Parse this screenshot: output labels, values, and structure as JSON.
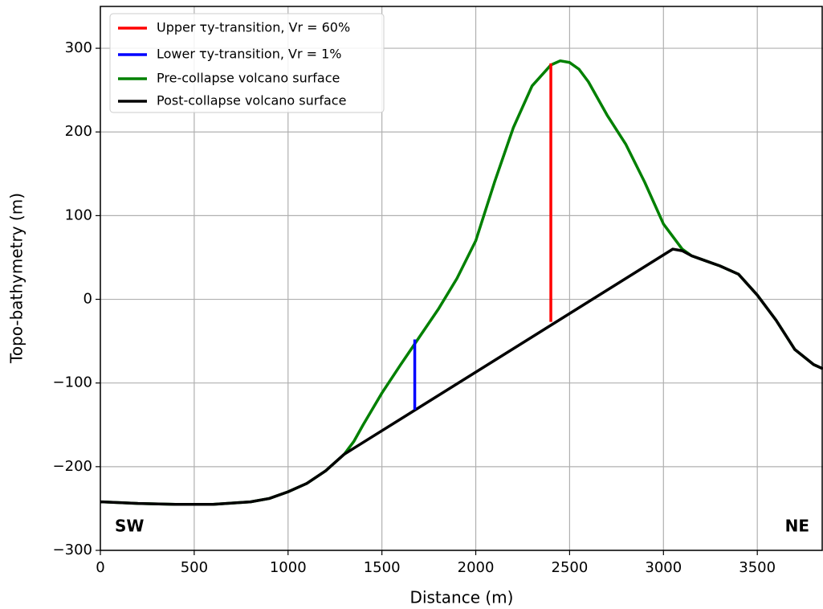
{
  "chart_data": {
    "type": "line",
    "x_label": "Distance (m)",
    "y_label": "Topo-bathymetry (m)",
    "annotations": [
      "SW",
      "NE"
    ],
    "xlim": [
      0,
      3850
    ],
    "ylim": [
      -300,
      350
    ],
    "xticks": [
      0,
      500,
      1000,
      1500,
      2000,
      2500,
      3000,
      3500
    ],
    "yticks": [
      {
        "value": -300,
        "label": "−300"
      },
      {
        "value": -200,
        "label": "−200"
      },
      {
        "value": -100,
        "label": "−100"
      },
      0,
      100,
      200,
      300
    ],
    "grid": true,
    "legend": "upper left",
    "series": [
      {
        "name": "Upper τy-transition, Vr = 60%",
        "color": "#ff0000",
        "x": [
          2400,
          2400
        ],
        "values": [
          -27,
          282
        ]
      },
      {
        "name": "Lower τy-transition, Vr = 1%",
        "color": "#0000ff",
        "x": [
          1675,
          1675
        ],
        "values": [
          -132,
          -48
        ]
      },
      {
        "name": "Pre-collapse volcano surface",
        "color": "#008000",
        "x": [
          0,
          200,
          400,
          600,
          800,
          900,
          1000,
          1100,
          1200,
          1300,
          1350,
          1400,
          1500,
          1600,
          1700,
          1800,
          1900,
          2000,
          2100,
          2200,
          2300,
          2400,
          2450,
          2500,
          2550,
          2600,
          2700,
          2800,
          2900,
          3000,
          3100,
          3150,
          3200,
          3300,
          3400,
          3500,
          3600,
          3700,
          3800,
          3850
        ],
        "values": [
          -242,
          -244,
          -245,
          -245,
          -242,
          -238,
          -230,
          -220,
          -205,
          -185,
          -170,
          -150,
          -112,
          -78,
          -45,
          -12,
          25,
          70,
          140,
          205,
          255,
          280,
          285,
          283,
          275,
          260,
          220,
          185,
          140,
          90,
          60,
          52,
          48,
          40,
          30,
          5,
          -25,
          -60,
          -78,
          -83
        ]
      },
      {
        "name": "Post-collapse volcano surface",
        "color": "#000000",
        "x": [
          0,
          200,
          400,
          600,
          800,
          900,
          1000,
          1100,
          1200,
          1300,
          1350,
          3050,
          3100,
          3150,
          3200,
          3300,
          3400,
          3500,
          3600,
          3700,
          3800,
          3850
        ],
        "values": [
          -242,
          -244,
          -245,
          -245,
          -242,
          -238,
          -230,
          -220,
          -205,
          -185,
          -178,
          60,
          58,
          52,
          48,
          40,
          30,
          5,
          -25,
          -60,
          -78,
          -83
        ]
      }
    ]
  }
}
